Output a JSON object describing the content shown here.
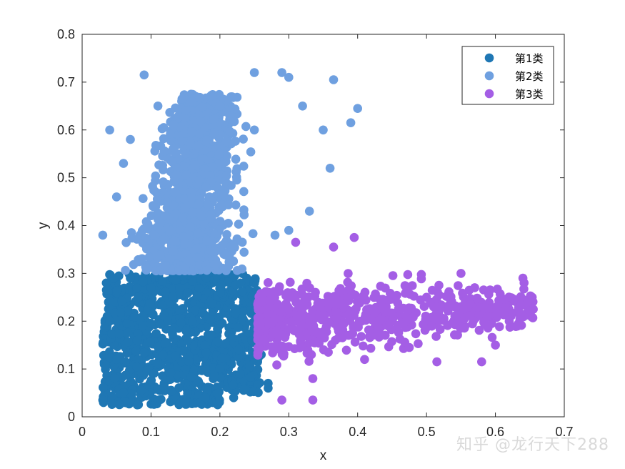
{
  "chart_data": {
    "type": "scatter",
    "xlabel": "x",
    "ylabel": "y",
    "xlim": [
      0,
      0.7
    ],
    "ylim": [
      0,
      0.8
    ],
    "xticks": [
      "0",
      "0.1",
      "0.2",
      "0.3",
      "0.4",
      "0.5",
      "0.6",
      "0.7"
    ],
    "yticks": [
      "0",
      "0.1",
      "0.2",
      "0.3",
      "0.4",
      "0.5",
      "0.6",
      "0.7",
      "0.8"
    ],
    "legend_position": "top-right",
    "grid": false,
    "series": [
      {
        "name": "第1类",
        "color": "#1f77b4",
        "region": {
          "x": [
            0.03,
            0.27
          ],
          "y": [
            0.02,
            0.3
          ]
        },
        "points": [
          [
            0.03,
            0.035
          ],
          [
            0.035,
            0.28
          ],
          [
            0.04,
            0.2
          ],
          [
            0.05,
            0.12
          ],
          [
            0.06,
            0.05
          ],
          [
            0.07,
            0.29
          ],
          [
            0.08,
            0.16
          ],
          [
            0.08,
            0.025
          ],
          [
            0.1,
            0.27
          ],
          [
            0.12,
            0.06
          ],
          [
            0.15,
            0.03
          ],
          [
            0.18,
            0.29
          ],
          [
            0.2,
            0.1
          ],
          [
            0.22,
            0.04
          ],
          [
            0.25,
            0.22
          ],
          [
            0.26,
            0.13
          ],
          [
            0.27,
            0.07
          ],
          [
            0.27,
            0.06
          ],
          [
            0.23,
            0.28
          ],
          [
            0.16,
            0.2
          ]
        ]
      },
      {
        "name": "第2类",
        "color": "#6fa0e0",
        "region": {
          "x": [
            0.03,
            0.4
          ],
          "y": [
            0.3,
            0.72
          ]
        },
        "points": [
          [
            0.09,
            0.715
          ],
          [
            0.25,
            0.72
          ],
          [
            0.29,
            0.72
          ],
          [
            0.3,
            0.71
          ],
          [
            0.365,
            0.705
          ],
          [
            0.04,
            0.6
          ],
          [
            0.03,
            0.38
          ],
          [
            0.07,
            0.58
          ],
          [
            0.11,
            0.65
          ],
          [
            0.2,
            0.65
          ],
          [
            0.32,
            0.65
          ],
          [
            0.4,
            0.645
          ],
          [
            0.39,
            0.615
          ],
          [
            0.36,
            0.52
          ],
          [
            0.33,
            0.43
          ],
          [
            0.05,
            0.46
          ],
          [
            0.06,
            0.53
          ],
          [
            0.28,
            0.38
          ],
          [
            0.3,
            0.39
          ],
          [
            0.35,
            0.6
          ],
          [
            0.25,
            0.6
          ],
          [
            0.15,
            0.55
          ],
          [
            0.12,
            0.42
          ],
          [
            0.18,
            0.48
          ]
        ]
      },
      {
        "name": "第3类",
        "color": "#a45ee5",
        "region": {
          "x": [
            0.25,
            0.66
          ],
          "y": [
            0.1,
            0.37
          ]
        },
        "points": [
          [
            0.29,
            0.035
          ],
          [
            0.335,
            0.035
          ],
          [
            0.335,
            0.08
          ],
          [
            0.31,
            0.365
          ],
          [
            0.395,
            0.375
          ],
          [
            0.365,
            0.355
          ],
          [
            0.55,
            0.3
          ],
          [
            0.64,
            0.29
          ],
          [
            0.655,
            0.225
          ],
          [
            0.58,
            0.115
          ],
          [
            0.6,
            0.15
          ],
          [
            0.515,
            0.115
          ],
          [
            0.475,
            0.145
          ],
          [
            0.41,
            0.12
          ],
          [
            0.45,
            0.2
          ],
          [
            0.5,
            0.25
          ],
          [
            0.57,
            0.27
          ],
          [
            0.62,
            0.2
          ],
          [
            0.52,
            0.23
          ],
          [
            0.43,
            0.17
          ]
        ]
      }
    ]
  },
  "watermark": "知乎 @龙行天下288"
}
